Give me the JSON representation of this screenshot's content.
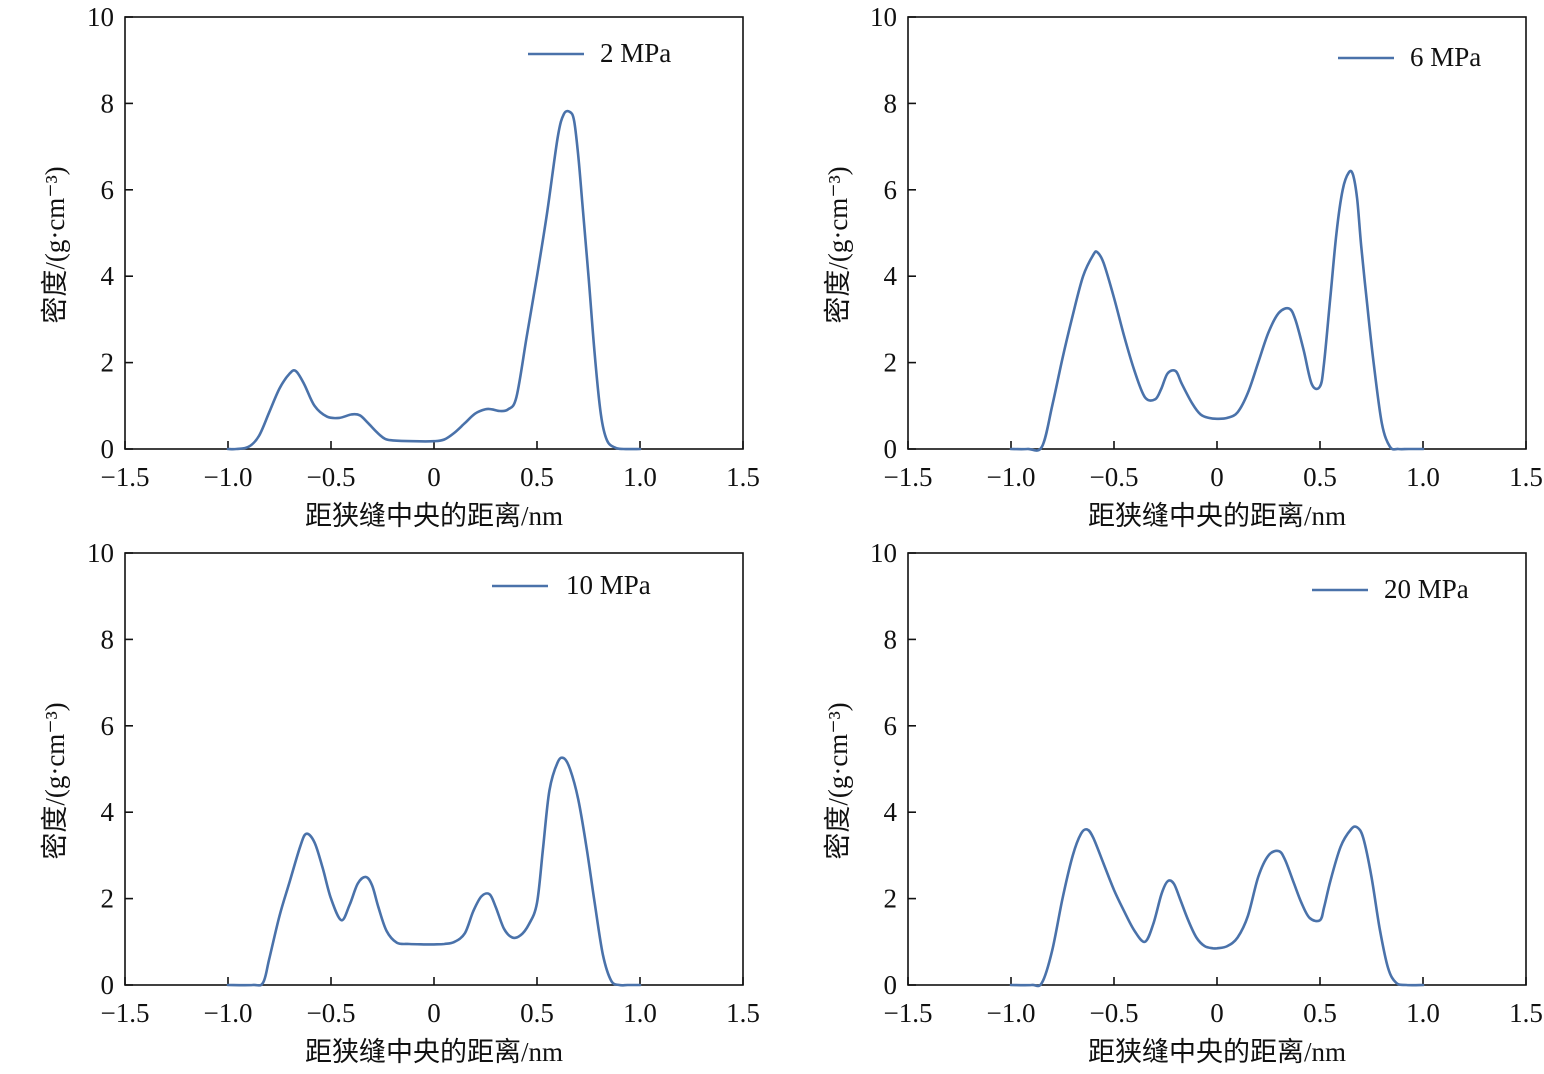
{
  "colors": {
    "line": "#4a72aa",
    "axis": "#111111"
  },
  "chart_data": [
    {
      "type": "line",
      "xlabel": "距狭缝中央的距离/nm",
      "ylabel": "密度/(g·cm⁻³)",
      "xlim": [
        -1.5,
        1.5
      ],
      "ylim": [
        0,
        10
      ],
      "xticks": [
        "−1.5",
        "−1.0",
        "−0.5",
        "0",
        "0.5",
        "1.0",
        "1.5"
      ],
      "yticks": [
        "0",
        "2",
        "4",
        "6",
        "8",
        "10"
      ],
      "legend": "top-right",
      "series": [
        {
          "name": "2 MPa",
          "x": [
            -1.0,
            -0.96,
            -0.9,
            -0.85,
            -0.8,
            -0.75,
            -0.7,
            -0.67,
            -0.63,
            -0.58,
            -0.52,
            -0.46,
            -0.4,
            -0.36,
            -0.32,
            -0.28,
            -0.24,
            -0.2,
            -0.1,
            0.0,
            0.05,
            0.1,
            0.15,
            0.2,
            0.25,
            0.28,
            0.32,
            0.36,
            0.4,
            0.45,
            0.5,
            0.55,
            0.6,
            0.63,
            0.66,
            0.68,
            0.7,
            0.72,
            0.75,
            0.78,
            0.81,
            0.84,
            0.88,
            0.92,
            1.0
          ],
          "y": [
            0,
            0.0,
            0.05,
            0.3,
            0.85,
            1.4,
            1.75,
            1.8,
            1.5,
            1.0,
            0.75,
            0.72,
            0.8,
            0.78,
            0.6,
            0.4,
            0.24,
            0.2,
            0.18,
            0.18,
            0.22,
            0.38,
            0.6,
            0.82,
            0.92,
            0.92,
            0.88,
            0.92,
            1.2,
            2.6,
            4.0,
            5.5,
            7.2,
            7.75,
            7.8,
            7.6,
            6.8,
            5.7,
            4.0,
            2.2,
            0.8,
            0.2,
            0.03,
            0.0,
            0
          ]
        }
      ]
    },
    {
      "type": "line",
      "xlabel": "距狭缝中央的距离/nm",
      "ylabel": "密度/(g·cm⁻³)",
      "xlim": [
        -1.5,
        1.5
      ],
      "ylim": [
        0,
        10
      ],
      "xticks": [
        "−1.5",
        "−1.0",
        "−0.5",
        "0",
        "0.5",
        "1.0",
        "1.5"
      ],
      "yticks": [
        "0",
        "2",
        "4",
        "6",
        "8",
        "10"
      ],
      "legend": "top-right",
      "series": [
        {
          "name": "6 MPa",
          "x": [
            -1.0,
            -0.92,
            -0.85,
            -0.8,
            -0.75,
            -0.7,
            -0.65,
            -0.6,
            -0.58,
            -0.55,
            -0.5,
            -0.45,
            -0.4,
            -0.35,
            -0.3,
            -0.27,
            -0.24,
            -0.2,
            -0.17,
            -0.12,
            -0.08,
            -0.04,
            0.0,
            0.05,
            0.1,
            0.15,
            0.2,
            0.25,
            0.3,
            0.35,
            0.38,
            0.42,
            0.46,
            0.5,
            0.52,
            0.55,
            0.58,
            0.61,
            0.64,
            0.66,
            0.68,
            0.7,
            0.73,
            0.76,
            0.8,
            0.84,
            0.88,
            0.93,
            1.0
          ],
          "y": [
            0,
            0.0,
            0.05,
            1.0,
            2.1,
            3.1,
            4.0,
            4.5,
            4.55,
            4.3,
            3.5,
            2.6,
            1.8,
            1.2,
            1.15,
            1.4,
            1.75,
            1.8,
            1.5,
            1.05,
            0.8,
            0.72,
            0.7,
            0.72,
            0.85,
            1.3,
            2.0,
            2.7,
            3.15,
            3.25,
            3.0,
            2.3,
            1.5,
            1.45,
            2.0,
            3.5,
            5.0,
            6.0,
            6.4,
            6.35,
            5.8,
            4.7,
            3.3,
            2.0,
            0.6,
            0.05,
            0.0,
            0.0,
            0
          ]
        }
      ]
    },
    {
      "type": "line",
      "xlabel": "距狭缝中央的距离/nm",
      "ylabel": "密度/(g·cm⁻³)",
      "xlim": [
        -1.5,
        1.5
      ],
      "ylim": [
        0,
        10
      ],
      "xticks": [
        "−1.5",
        "−1.0",
        "−0.5",
        "0",
        "0.5",
        "1.0",
        "1.5"
      ],
      "yticks": [
        "0",
        "2",
        "4",
        "6",
        "8",
        "10"
      ],
      "legend": "top-right",
      "series": [
        {
          "name": "10 MPa",
          "x": [
            -1.0,
            -0.88,
            -0.83,
            -0.8,
            -0.75,
            -0.7,
            -0.65,
            -0.62,
            -0.58,
            -0.54,
            -0.5,
            -0.45,
            -0.41,
            -0.37,
            -0.33,
            -0.3,
            -0.27,
            -0.23,
            -0.18,
            -0.12,
            -0.05,
            0.0,
            0.05,
            0.1,
            0.15,
            0.19,
            0.23,
            0.27,
            0.3,
            0.34,
            0.38,
            0.42,
            0.46,
            0.5,
            0.53,
            0.56,
            0.6,
            0.63,
            0.66,
            0.7,
            0.74,
            0.78,
            0.82,
            0.86,
            0.9,
            0.94,
            1.0
          ],
          "y": [
            0,
            0.0,
            0.05,
            0.6,
            1.6,
            2.4,
            3.2,
            3.5,
            3.3,
            2.7,
            2.0,
            1.5,
            1.85,
            2.35,
            2.5,
            2.3,
            1.8,
            1.25,
            0.98,
            0.95,
            0.94,
            0.94,
            0.95,
            1.0,
            1.2,
            1.7,
            2.05,
            2.1,
            1.8,
            1.3,
            1.1,
            1.15,
            1.4,
            1.9,
            3.2,
            4.5,
            5.15,
            5.25,
            5.0,
            4.3,
            3.2,
            1.9,
            0.7,
            0.1,
            0.0,
            0.0,
            0
          ]
        }
      ]
    },
    {
      "type": "line",
      "xlabel": "距狭缝中央的距离/nm",
      "ylabel": "密度/(g·cm⁻³)",
      "xlim": [
        -1.5,
        1.5
      ],
      "ylim": [
        0,
        10
      ],
      "xticks": [
        "−1.5",
        "−1.0",
        "−0.5",
        "0",
        "0.5",
        "1.0",
        "1.5"
      ],
      "yticks": [
        "0",
        "2",
        "4",
        "6",
        "8",
        "10"
      ],
      "legend": "top-right",
      "series": [
        {
          "name": "20 MPa",
          "x": [
            -1.0,
            -0.9,
            -0.85,
            -0.8,
            -0.75,
            -0.7,
            -0.66,
            -0.63,
            -0.6,
            -0.55,
            -0.5,
            -0.45,
            -0.4,
            -0.35,
            -0.31,
            -0.27,
            -0.24,
            -0.21,
            -0.18,
            -0.14,
            -0.1,
            -0.06,
            -0.02,
            0.0,
            0.05,
            0.1,
            0.15,
            0.2,
            0.25,
            0.3,
            0.33,
            0.37,
            0.41,
            0.45,
            0.5,
            0.52,
            0.55,
            0.6,
            0.65,
            0.68,
            0.71,
            0.75,
            0.79,
            0.83,
            0.87,
            0.92,
            1.0
          ],
          "y": [
            0,
            0.0,
            0.05,
            0.8,
            2.0,
            3.0,
            3.5,
            3.6,
            3.4,
            2.8,
            2.2,
            1.7,
            1.25,
            1.0,
            1.4,
            2.1,
            2.4,
            2.35,
            2.0,
            1.5,
            1.1,
            0.9,
            0.85,
            0.85,
            0.9,
            1.1,
            1.6,
            2.5,
            3.0,
            3.1,
            2.9,
            2.4,
            1.9,
            1.55,
            1.5,
            1.8,
            2.4,
            3.2,
            3.6,
            3.65,
            3.4,
            2.5,
            1.3,
            0.4,
            0.05,
            0.0,
            0
          ]
        }
      ]
    }
  ]
}
